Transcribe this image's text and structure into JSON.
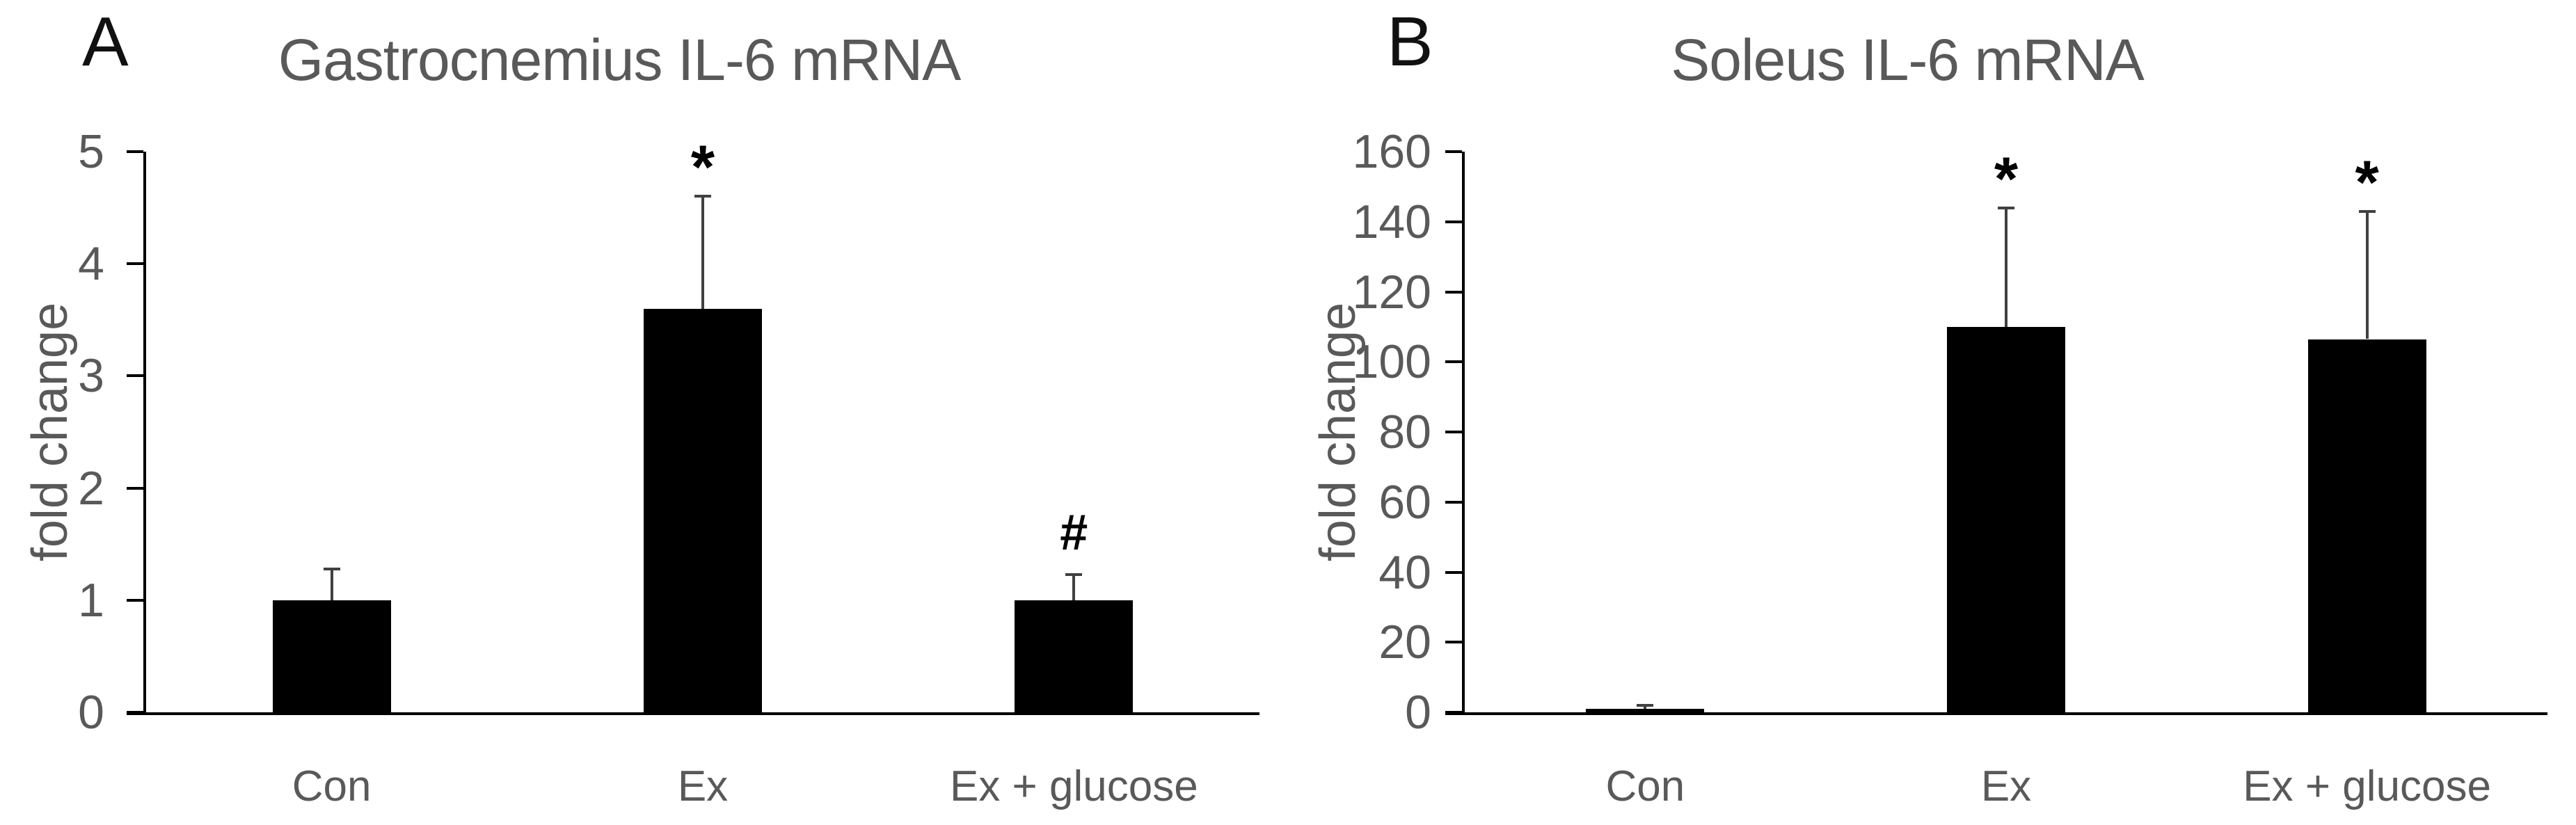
{
  "colors": {
    "bar": "#000000",
    "axis": "#000000",
    "error_bar": "#404040",
    "text_gray": "#595959",
    "annotation": "#000000"
  },
  "chart_data": [
    {
      "type": "bar",
      "panel_label": "A",
      "title": "Gastrocnemius IL-6 mRNA",
      "ylabel": "fold change",
      "xlabel": "",
      "categories": [
        "Con",
        "Ex",
        "Ex + glucose"
      ],
      "values": [
        1.0,
        3.6,
        1.0
      ],
      "error_upper": [
        1.28,
        4.6,
        1.23
      ],
      "annotations": [
        "",
        "*",
        "#"
      ],
      "ylim": [
        0,
        5
      ],
      "yticks": [
        0,
        1,
        2,
        3,
        4,
        5
      ],
      "grid": false,
      "legend": null
    },
    {
      "type": "bar",
      "panel_label": "B",
      "title": "Soleus IL-6 mRNA",
      "ylabel": "fold change",
      "xlabel": "",
      "categories": [
        "Con",
        "Ex",
        "Ex + glucose"
      ],
      "values": [
        1.0,
        110,
        106.5
      ],
      "error_upper": [
        2,
        144,
        143
      ],
      "annotations": [
        "",
        "*",
        "*"
      ],
      "ylim": [
        0,
        160
      ],
      "yticks": [
        0,
        20,
        40,
        60,
        80,
        100,
        120,
        140,
        160
      ],
      "grid": false,
      "legend": null
    }
  ]
}
